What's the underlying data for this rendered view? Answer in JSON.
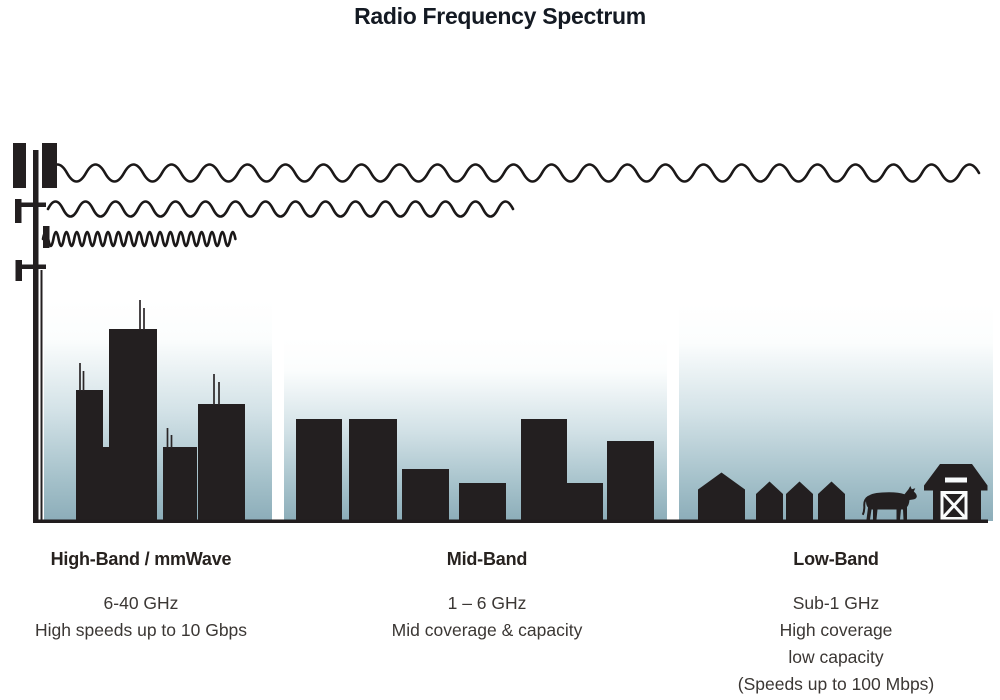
{
  "title": "Radio Frequency Spectrum",
  "bands": [
    {
      "id": "high",
      "heading": "High-Band / mmWave",
      "frequency": "6-40 GHz",
      "details": [
        "High speeds up to 10 Gbps"
      ]
    },
    {
      "id": "mid",
      "heading": "Mid-Band",
      "frequency": "1 – 6 GHz",
      "details": [
        "Mid coverage & capacity"
      ]
    },
    {
      "id": "low",
      "heading": "Low-Band",
      "frequency": "Sub-1 GHz",
      "details": [
        "High coverage",
        "low capacity",
        "(Speeds up to 100 Mbps)"
      ]
    }
  ],
  "illustration": {
    "tower": "cell-tower",
    "waves": [
      {
        "name": "long-wavelength-wave",
        "reaches": "Low-Band"
      },
      {
        "name": "medium-wavelength-wave",
        "reaches": "Mid-Band"
      },
      {
        "name": "short-wavelength-wave",
        "reaches": "High-Band"
      }
    ],
    "scenes": [
      {
        "name": "city-skyline",
        "band": "High-Band"
      },
      {
        "name": "midrise-buildings",
        "band": "Mid-Band"
      },
      {
        "name": "rural-houses-cow-barn",
        "band": "Low-Band"
      }
    ]
  },
  "colors": {
    "ink": "#231f20",
    "title_text": "#141a23",
    "body_text": "#3b3734",
    "sky_top": "#ffffff",
    "sky_bottom": "#8cadb9"
  }
}
